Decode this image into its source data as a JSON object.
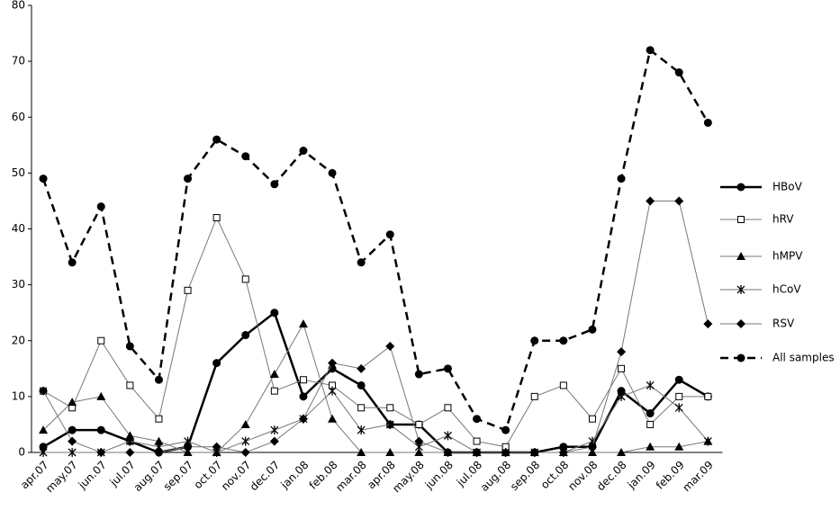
{
  "chart_data": {
    "type": "line",
    "categories": [
      "apr.07",
      "may.07",
      "jun.07",
      "jul.07",
      "aug.07",
      "sep.07",
      "oct.07",
      "nov.07",
      "dec.07",
      "jan.08",
      "feb.08",
      "mar.08",
      "apr.08",
      "may.08",
      "jun.08",
      "jul.08",
      "aug.08",
      "sep.08",
      "oct.08",
      "nov.08",
      "dec.08",
      "jan.09",
      "feb.09",
      "mar.09"
    ],
    "ylim": [
      0,
      80
    ],
    "yticks": [
      0,
      10,
      20,
      30,
      40,
      50,
      60,
      70,
      80
    ],
    "grid": false,
    "legend": "right",
    "series": [
      {
        "name": "HBoV",
        "color": "#000000",
        "marker": "circle",
        "dashed": false,
        "line_width": 2.5,
        "values": [
          1,
          4,
          4,
          2,
          0,
          1,
          16,
          21,
          25,
          10,
          15,
          12,
          5,
          5,
          0,
          0,
          0,
          0,
          1,
          1,
          11,
          7,
          13,
          10
        ]
      },
      {
        "name": "hRV",
        "color": "#777777",
        "marker": "square-open",
        "dashed": false,
        "line_width": 1,
        "values": [
          11,
          8,
          20,
          12,
          6,
          29,
          42,
          31,
          11,
          13,
          12,
          8,
          8,
          5,
          8,
          2,
          1,
          10,
          12,
          6,
          15,
          5,
          10,
          10
        ]
      },
      {
        "name": "hMPV",
        "color": "#777777",
        "marker": "triangle",
        "dashed": false,
        "line_width": 1,
        "values": [
          4,
          9,
          10,
          3,
          2,
          0,
          0,
          5,
          14,
          23,
          6,
          0,
          0,
          0,
          0,
          0,
          0,
          0,
          0,
          0,
          0,
          1,
          1,
          2
        ]
      },
      {
        "name": "hCoV",
        "color": "#777777",
        "marker": "asterisk",
        "dashed": false,
        "line_width": 1,
        "values": [
          0,
          0,
          0,
          2,
          1,
          2,
          0,
          2,
          4,
          6,
          11,
          4,
          5,
          1,
          3,
          0,
          0,
          0,
          0,
          2,
          10,
          12,
          8,
          2
        ]
      },
      {
        "name": "RSV",
        "color": "#777777",
        "marker": "diamond",
        "dashed": false,
        "line_width": 1,
        "values": [
          11,
          2,
          0,
          0,
          0,
          1,
          1,
          0,
          2,
          6,
          16,
          15,
          19,
          2,
          0,
          0,
          0,
          0,
          0,
          1,
          18,
          45,
          45,
          23
        ]
      },
      {
        "name": "All samples",
        "color": "#000000",
        "marker": "circle",
        "dashed": true,
        "line_width": 2.5,
        "values": [
          49,
          34,
          44,
          19,
          13,
          49,
          56,
          53,
          48,
          54,
          50,
          34,
          39,
          14,
          15,
          6,
          4,
          20,
          20,
          22,
          49,
          72,
          68,
          59
        ]
      }
    ]
  }
}
